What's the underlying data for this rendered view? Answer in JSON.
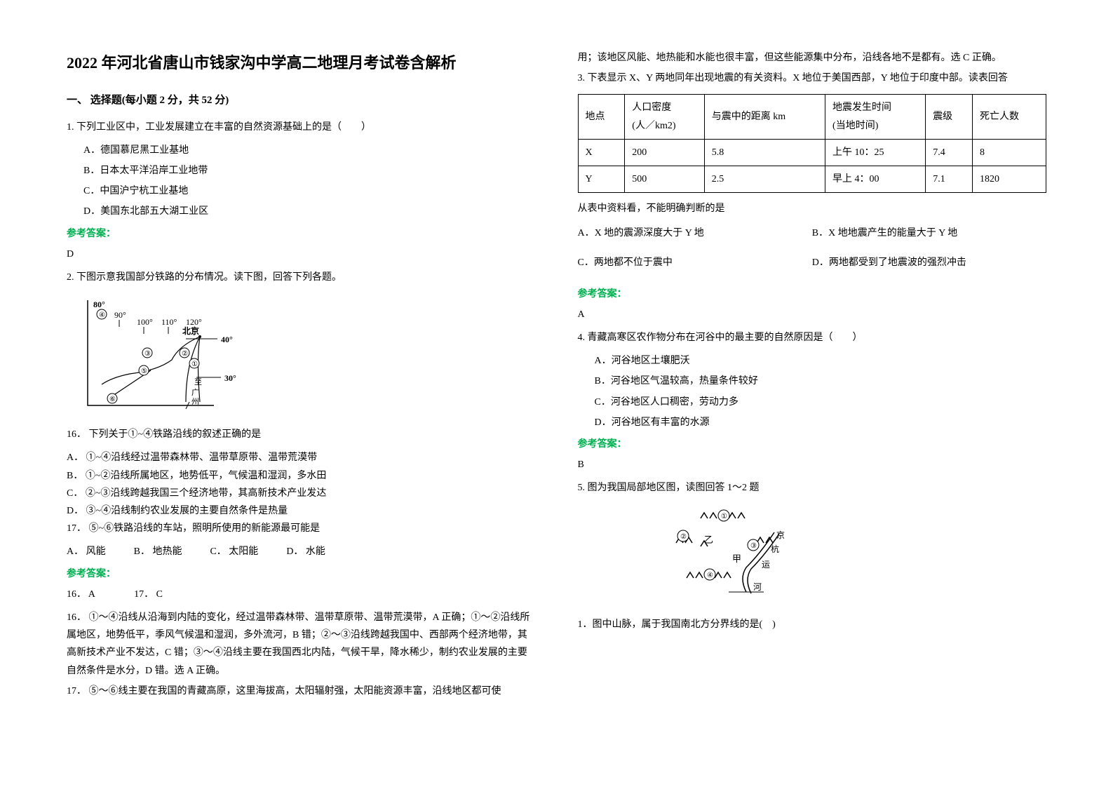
{
  "title": "2022 年河北省唐山市钱家沟中学高二地理月考试卷含解析",
  "section1": {
    "header": "一、 选择题(每小题 2 分，共 52 分)"
  },
  "q1": {
    "stem": "1. 下列工业区中，工业发展建立在丰富的自然资源基础上的是（　　）",
    "optA": "A．德国慕尼黑工业基地",
    "optB": "B．日本太平洋沿岸工业地带",
    "optC": "C．中国沪宁杭工业基地",
    "optD": "D．美国东北部五大湖工业区",
    "answerLabel": "参考答案：",
    "answer": "D"
  },
  "q2": {
    "stem": "2. 下图示意我国部分铁路的分布情况。读下图，回答下列各题。",
    "map": {
      "lon_labels": [
        "80°",
        "90°",
        "100°",
        "110°",
        "120°"
      ],
      "lat_labels": [
        "40°",
        "30°"
      ],
      "city_bj": "北京",
      "city_gz": "广州",
      "zhi": "至",
      "markers": [
        "①",
        "②",
        "③",
        "④",
        "⑤",
        "⑥"
      ],
      "stroke": "#000000",
      "fill": "#ffffff",
      "font_size": 12
    },
    "sub16": {
      "stem": "16． 下列关于①~④铁路沿线的叙述正确的是",
      "optA": "A． ①~④沿线经过温带森林带、温带草原带、温带荒漠带",
      "optB": "B． ①~②沿线所属地区，地势低平，气候温和湿润，多水田",
      "optC": "C． ②~③沿线跨越我国三个经济地带，其高新技术产业发达",
      "optD": "D． ③~④沿线制约农业发展的主要自然条件是热量"
    },
    "sub17": {
      "stem": "17． ⑤~⑥铁路沿线的车站，照明所使用的新能源最可能是",
      "optA": "A． 风能",
      "optB": "B． 地热能",
      "optC": "C． 太阳能",
      "optD": "D． 水能"
    },
    "answerLabel": "参考答案：",
    "answerLine": "16． A　　　　17． C",
    "explain16": "16． ①～④沿线从沿海到内陆的变化，经过温带森林带、温带草原带、温带荒漠带，A 正确；①～②沿线所属地区，地势低平，季风气候温和湿润，多外流河，B 错；②～③沿线跨越我国中、西部两个经济地带，其高新技术产业不发达，C 错；③～④沿线主要在我国西北内陆，气候干旱，降水稀少，制约农业发展的主要自然条件是水分，D 错。选 A 正确。",
    "explain17": "17． ⑤～⑥线主要在我国的青藏高原，这里海拔高，太阳辐射强，太阳能资源丰富，沿线地区都可使"
  },
  "col2_top": "用；该地区风能、地热能和水能也很丰富，但这些能源集中分布，沿线各地不是都有。选 C 正确。",
  "q3": {
    "stem": "3. 下表显示 X、Y 两地同年出现地震的有关资料。X 地位于美国西部，Y 地位于印度中部。读表回答",
    "table": {
      "headers": [
        "地点",
        "人口密度\n(人／km2)",
        "与震中的距离 km",
        "地震发生时间\n(当地时间)",
        "震级",
        "死亡人数"
      ],
      "rows": [
        [
          "X",
          "200",
          "5.8",
          "上午 10：25",
          "7.4",
          "8"
        ],
        [
          "Y",
          "500",
          "2.5",
          "早上 4：00",
          "7.1",
          "1820"
        ]
      ],
      "border_color": "#000000",
      "cell_padding": 6
    },
    "afterTable": "从表中资料看，不能明确判断的是",
    "optA": "A．X 地的震源深度大于 Y 地",
    "optB": "B．X 地地震产生的能量大于 Y 地",
    "optC": "C．两地都不位于震中",
    "optD": "D．两地都受到了地震波的强烈冲击",
    "answerLabel": "参考答案：",
    "answer": "A"
  },
  "q4": {
    "stem": "4. 青藏高寒区农作物分布在河谷中的最主要的自然原因是（　　）",
    "optA": "A．河谷地区土壤肥沃",
    "optB": "B．河谷地区气温较高，热量条件较好",
    "optC": "C．河谷地区人口稠密，劳动力多",
    "optD": "D．河谷地区有丰富的水源",
    "answerLabel": "参考答案：",
    "answer": "B"
  },
  "q5": {
    "stem": "5. 图为我国局部地区图，读图回答 1～2 题",
    "diagram": {
      "markers": [
        "①",
        "②",
        "③",
        "④"
      ],
      "labels": [
        "乙",
        "甲",
        "京",
        "杭",
        "运",
        "河"
      ],
      "stroke": "#000000",
      "font_size": 12
    },
    "sub1": "1．图中山脉，属于我国南北方分界线的是(　)"
  }
}
